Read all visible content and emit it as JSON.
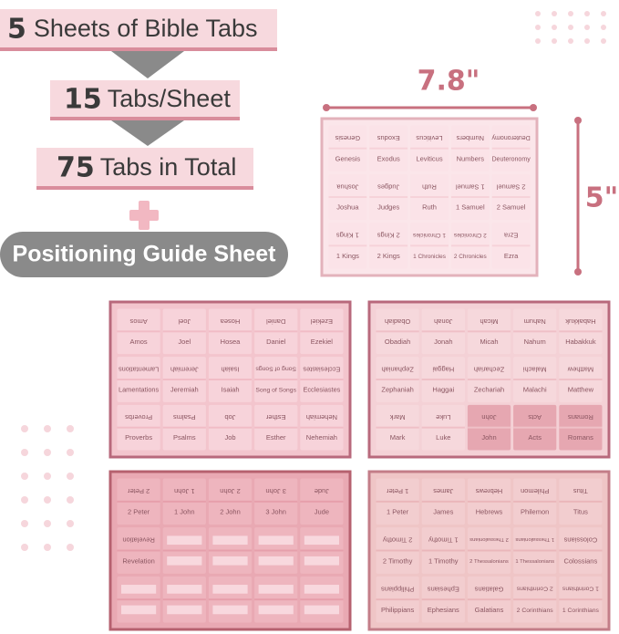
{
  "header": {
    "banners": [
      {
        "number": "5",
        "text": "Sheets of Bible Tabs"
      },
      {
        "number": "15",
        "text": "Tabs/Sheet"
      },
      {
        "number": "75",
        "text": "Tabs in Total"
      }
    ],
    "guide": "Positioning Guide Sheet"
  },
  "dimensions": {
    "width": "7.8\"",
    "height": "5\""
  },
  "sheets": [
    {
      "rows": [
        [
          "Genesis",
          "Exodus",
          "Leviticus",
          "Numbers",
          "Deuteronomy"
        ],
        [
          "Joshua",
          "Judges",
          "Ruth",
          "1 Samuel",
          "2 Samuel"
        ],
        [
          "1 Kings",
          "2 Kings",
          "1 Chronicles",
          "2 Chronicles",
          "Ezra"
        ]
      ]
    },
    {
      "rows": [
        [
          "Amos",
          "Joel",
          "Hosea",
          "Daniel",
          "Ezekiel"
        ],
        [
          "Lamentations",
          "Jeremiah",
          "Isaiah",
          "Song of Songs",
          "Ecclesiastes"
        ],
        [
          "Proverbs",
          "Psalms",
          "Job",
          "Esther",
          "Nehemiah"
        ]
      ]
    },
    {
      "rows": [
        [
          "Obadiah",
          "Jonah",
          "Micah",
          "Nahum",
          "Habakkuk"
        ],
        [
          "Zephaniah",
          "Haggai",
          "Zechariah",
          "Malachi",
          "Matthew"
        ],
        [
          "Mark",
          "Luke",
          "John",
          "Acts",
          "Romans"
        ]
      ]
    },
    {
      "rows": [
        [
          "2 Peter",
          "1 John",
          "2 John",
          "3 John",
          "Jude"
        ],
        [
          "Revelation"
        ],
        []
      ]
    },
    {
      "rows": [
        [
          "1 Peter",
          "James",
          "Hebrews",
          "Philemon",
          "Titus"
        ],
        [
          "2 Timothy",
          "1 Timothy",
          "2 Thessalonians",
          "1 Thessalonians",
          "Colossians"
        ],
        [
          "Philippians",
          "Ephesians",
          "Galatians",
          "2 Corinthians",
          "1 Corinthians"
        ]
      ]
    }
  ]
}
